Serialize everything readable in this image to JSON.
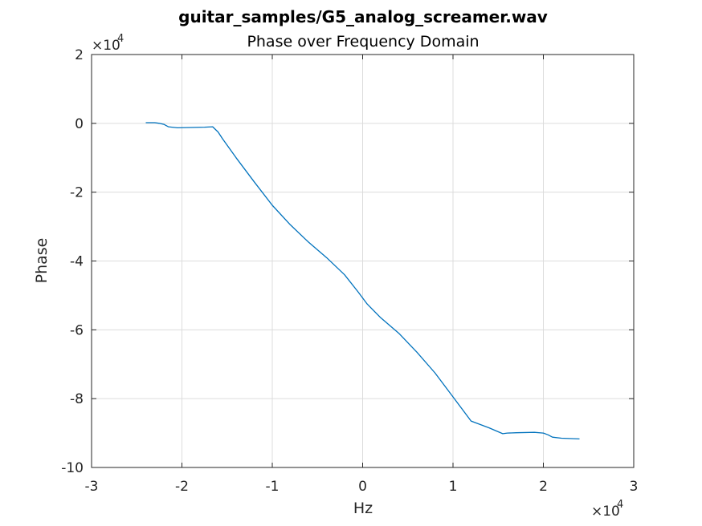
{
  "chart_data": {
    "type": "line",
    "title": "guitar_samples/G5_analog_screamer.wav",
    "subtitle": "Phase over Frequency Domain",
    "xlabel": "Hz",
    "ylabel": "Phase",
    "xlim": [
      -30000,
      30000
    ],
    "ylim": [
      -100000,
      20000
    ],
    "grid": true,
    "x_ticks": [
      -30000,
      -20000,
      -10000,
      0,
      10000,
      20000,
      30000
    ],
    "x_tick_labels": [
      "-3",
      "-2",
      "-1",
      "0",
      "1",
      "2",
      "3"
    ],
    "y_ticks": [
      -100000,
      -80000,
      -60000,
      -40000,
      -20000,
      0,
      20000
    ],
    "y_tick_labels": [
      "-10",
      "-8",
      "-6",
      "-4",
      "-2",
      "0",
      "2"
    ],
    "x_exponent": {
      "base": "×10",
      "power": "4"
    },
    "y_exponent": {
      "base": "×10",
      "power": "4"
    },
    "series": [
      {
        "color": "#0072BD",
        "x": [
          -24000,
          -23000,
          -22500,
          -22000,
          -21500,
          -20500,
          -19000,
          -17500,
          -16600,
          -16000,
          -15500,
          -14000,
          -12000,
          -10000,
          -8000,
          -6000,
          -4000,
          -2000,
          -500,
          500,
          2000,
          4000,
          6000,
          8000,
          10000,
          12000,
          14000,
          15500,
          16000,
          17000,
          19000,
          20000,
          20500,
          21000,
          22000,
          24000
        ],
        "y": [
          200,
          200,
          0,
          -300,
          -1000,
          -1300,
          -1200,
          -1100,
          -1000,
          -2500,
          -4500,
          -10000,
          -17000,
          -23800,
          -29500,
          -34500,
          -39000,
          -44000,
          -49000,
          -52500,
          -56500,
          -61000,
          -66500,
          -72500,
          -79500,
          -86500,
          -88500,
          -90200,
          -90000,
          -89900,
          -89800,
          -90000,
          -90500,
          -91200,
          -91500,
          -91700
        ]
      }
    ]
  }
}
